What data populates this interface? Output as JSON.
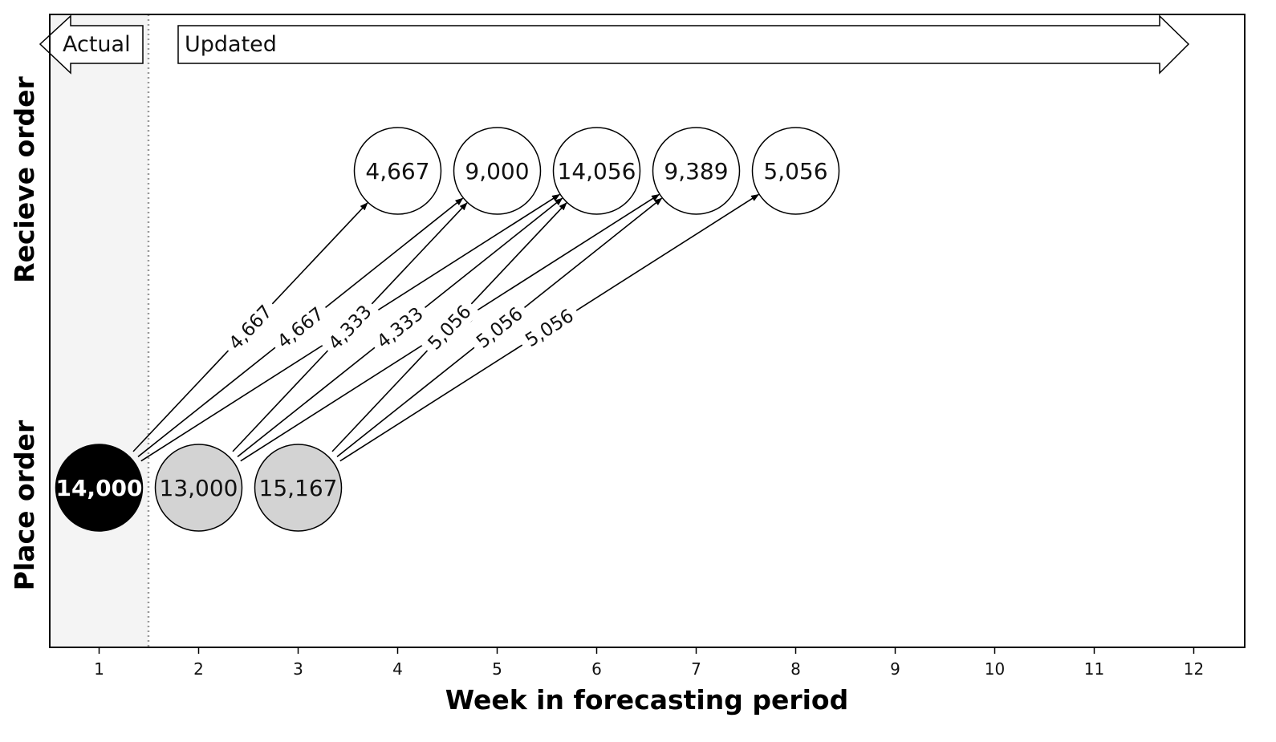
{
  "chart_data": {
    "type": "diagram",
    "xlabel": "Week in forecasting period",
    "ylabels": {
      "place": "Place order",
      "receive": "Recieve order"
    },
    "x_ticks": [
      1,
      2,
      3,
      4,
      5,
      6,
      7,
      8,
      9,
      10,
      11,
      12
    ],
    "xlim": [
      0.5,
      12.5
    ],
    "actual_divider_week": 1.5,
    "grid": false,
    "banners": {
      "actual": "Actual",
      "updated": "Updated"
    },
    "place_orders": [
      {
        "week": 1,
        "label": "14,000",
        "status": "actual"
      },
      {
        "week": 2,
        "label": "13,000",
        "status": "updated"
      },
      {
        "week": 3,
        "label": "15,167",
        "status": "updated"
      }
    ],
    "receive_orders": [
      {
        "week": 4,
        "label": "4,667"
      },
      {
        "week": 5,
        "label": "9,000"
      },
      {
        "week": 6,
        "label": "14,056"
      },
      {
        "week": 7,
        "label": "9,389"
      },
      {
        "week": 8,
        "label": "5,056"
      }
    ],
    "flows": [
      {
        "from_week": 1,
        "to_week": 4,
        "label": "4,667"
      },
      {
        "from_week": 1,
        "to_week": 5,
        "label": "4,667"
      },
      {
        "from_week": 1,
        "to_week": 6,
        "label": "4,667"
      },
      {
        "from_week": 2,
        "to_week": 5,
        "label": "4,333"
      },
      {
        "from_week": 2,
        "to_week": 6,
        "label": "4,333"
      },
      {
        "from_week": 2,
        "to_week": 7,
        "label": "4,333"
      },
      {
        "from_week": 3,
        "to_week": 6,
        "label": "5,056"
      },
      {
        "from_week": 3,
        "to_week": 7,
        "label": "5,056"
      },
      {
        "from_week": 3,
        "to_week": 8,
        "label": "5,056"
      }
    ],
    "colors": {
      "actual_node": "#000000",
      "updated_node": "#d3d3d3",
      "receive_node": "#ffffff",
      "actual_shade": "#f4f4f4",
      "divider": "#999999"
    }
  }
}
